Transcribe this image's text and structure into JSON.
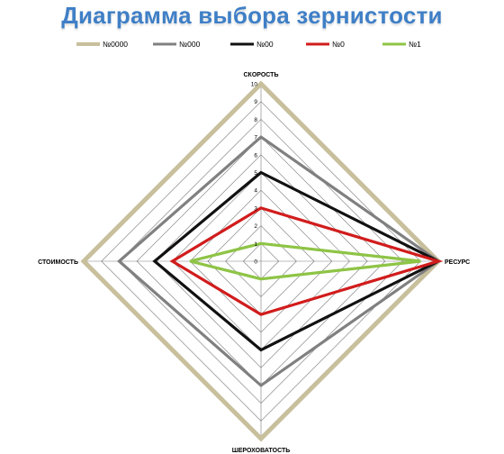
{
  "chart_data": {
    "type": "radar",
    "title": "Диаграмма выбора зернистости",
    "axes": [
      "СКОРОСТЬ",
      "РЕСУРС",
      "ШЕРОХОВАТОСТЬ",
      "СТОИМОСТЬ"
    ],
    "rlim": [
      0,
      10
    ],
    "ticks": [
      0,
      1,
      2,
      3,
      4,
      5,
      6,
      7,
      8,
      9,
      10
    ],
    "grid": true,
    "legend": "top",
    "series": [
      {
        "name": "№0000",
        "color": "#c8bf9c",
        "values": [
          10,
          10,
          10,
          10
        ]
      },
      {
        "name": "№000",
        "color": "#808080",
        "values": [
          7,
          10,
          7,
          8
        ]
      },
      {
        "name": "№00",
        "color": "#111111",
        "values": [
          5,
          10,
          5,
          6
        ]
      },
      {
        "name": "№0",
        "color": "#d11c1c",
        "values": [
          3,
          10,
          3,
          5
        ]
      },
      {
        "name": "№1",
        "color": "#8ec446",
        "values": [
          1,
          9,
          1,
          4
        ]
      }
    ]
  }
}
